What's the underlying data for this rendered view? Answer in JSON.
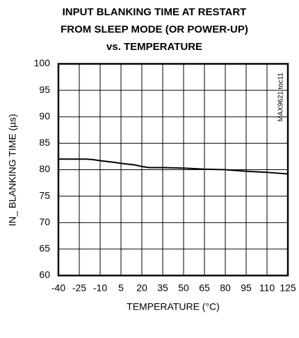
{
  "chart_data": {
    "type": "line",
    "title": [
      "INPUT BLANKING TIME AT RESTART",
      "FROM SLEEP MODE (OR POWER-UP)",
      "vs. TEMPERATURE"
    ],
    "x_label": "TEMPERATURE (°C)",
    "y_label": "IN_ BLANKING TIME (µs)",
    "annotation": "MAX9621 toc11",
    "x": [
      -40,
      -30,
      -20,
      -15,
      -10,
      0,
      5,
      15,
      20,
      25,
      35,
      50,
      65,
      80,
      95,
      110,
      125
    ],
    "series": [
      {
        "name": "blanking",
        "color": "#000000",
        "values": [
          82,
          82,
          82,
          81.9,
          81.7,
          81.4,
          81.2,
          80.9,
          80.6,
          80.4,
          80.4,
          80.3,
          80.1,
          80,
          79.7,
          79.5,
          79.2
        ]
      }
    ],
    "xlim": [
      -40,
      125
    ],
    "xticks": [
      -40,
      -25,
      -10,
      5,
      20,
      35,
      50,
      65,
      80,
      95,
      110,
      125
    ],
    "ylim": [
      60,
      100
    ],
    "yticks": [
      60,
      65,
      70,
      75,
      80,
      85,
      90,
      95,
      100
    ],
    "grid": true
  }
}
